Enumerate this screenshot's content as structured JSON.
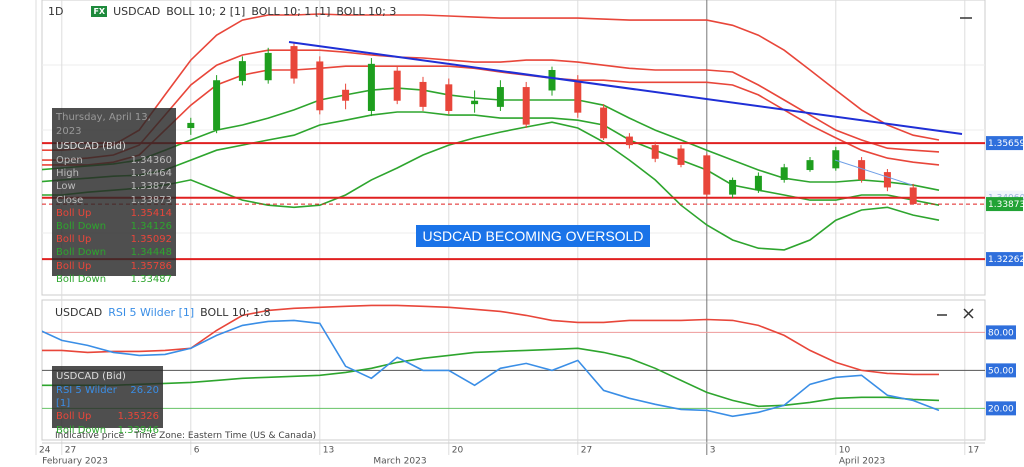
{
  "toolbar": {
    "timeframe": "1D",
    "badge": "FX"
  },
  "annotation": "USDCAD BECOMING OVERSOLD",
  "footer": {
    "price_type": "Indicative price",
    "time_zone": "Time Zone: Eastern Time (US & Canada)"
  },
  "months": [
    "February 2023",
    "March 2023",
    "April 2023"
  ],
  "info_panels": [
    {
      "date": "Thursday, April 13, 2023",
      "title": "USDCAD (Bid)",
      "rows": [
        {
          "label": "Open",
          "value": "1.34360",
          "color": "#bbbbbb"
        },
        {
          "label": "High",
          "value": "1.34464",
          "color": "#bbbbbb"
        },
        {
          "label": "Low",
          "value": "1.33872",
          "color": "#bbbbbb"
        },
        {
          "label": "Close",
          "value": "1.33873",
          "color": "#bbbbbb"
        },
        {
          "label": "Boll Up",
          "value": "1.35414",
          "color": "#e8463a"
        },
        {
          "label": "Boll Down",
          "value": "1.34126",
          "color": "#2ea52e"
        },
        {
          "label": "Boll Up",
          "value": "1.35092",
          "color": "#e8463a"
        },
        {
          "label": "Boll Down",
          "value": "1.34448",
          "color": "#2ea52e"
        },
        {
          "label": "Boll Up",
          "value": "1.35786",
          "color": "#e8463a"
        },
        {
          "label": "Boll Down",
          "value": "1.33487",
          "color": "#2ea52e"
        }
      ]
    },
    {
      "title": "USDCAD (Bid)",
      "rows": [
        {
          "label": "RSI 5 Wilder [1]",
          "value": "26.20",
          "color": "#3a8ee6"
        },
        {
          "label": "Boll Up",
          "value": "1.35326",
          "color": "#e8463a"
        },
        {
          "label": "Boll Down",
          "value": "1.33946",
          "color": "#2ea52e"
        }
      ]
    }
  ],
  "chart_data": [
    {
      "type": "candlestick",
      "symbol": "USDCAD",
      "categories": [
        "24",
        "27",
        null,
        null,
        null,
        null,
        "6",
        null,
        null,
        null,
        null,
        "13",
        null,
        null,
        null,
        null,
        "20",
        null,
        null,
        null,
        null,
        "27",
        null,
        null,
        null,
        null,
        "3",
        null,
        null,
        null,
        null,
        "10",
        null,
        null,
        null,
        null,
        "17"
      ],
      "ylim": [
        1.3121,
        1.3985
      ],
      "up_color": "#1e9e1e",
      "down_color": "#e8463a",
      "open": [
        null,
        null,
        null,
        null,
        null,
        null,
        1.361,
        1.3604,
        1.3748,
        1.375,
        1.385,
        1.3805,
        1.3722,
        1.366,
        1.3778,
        1.3745,
        1.3738,
        1.368,
        1.3672,
        1.373,
        1.372,
        1.375,
        1.367,
        1.3585,
        1.356,
        1.355,
        1.353,
        1.3415,
        1.3428,
        1.3458,
        1.3487,
        1.3492,
        1.3516,
        1.3481,
        1.3436,
        null,
        null
      ],
      "high": [
        null,
        null,
        null,
        null,
        null,
        null,
        1.364,
        1.3765,
        1.382,
        1.3845,
        1.3862,
        1.382,
        1.374,
        1.3815,
        1.379,
        1.376,
        1.3755,
        1.372,
        1.375,
        1.3745,
        1.379,
        1.3765,
        1.368,
        1.3595,
        1.357,
        1.356,
        1.3535,
        1.3465,
        1.348,
        1.3505,
        1.3525,
        1.3555,
        1.3525,
        1.349,
        1.34464,
        null,
        null
      ],
      "low": [
        null,
        null,
        null,
        null,
        null,
        null,
        1.359,
        1.3595,
        1.3735,
        1.374,
        1.374,
        1.365,
        1.3665,
        1.3645,
        1.368,
        1.366,
        1.365,
        1.3655,
        1.366,
        1.361,
        1.3705,
        1.364,
        1.3575,
        1.355,
        1.351,
        1.3495,
        1.341,
        1.3405,
        1.342,
        1.345,
        1.3482,
        1.3485,
        1.345,
        1.3425,
        1.33872,
        null,
        null
      ],
      "close": [
        null,
        null,
        null,
        null,
        null,
        null,
        1.3625,
        1.375,
        1.3806,
        1.383,
        1.3755,
        1.3662,
        1.369,
        1.3798,
        1.369,
        1.3672,
        1.366,
        1.369,
        1.373,
        1.362,
        1.378,
        1.3655,
        1.358,
        1.356,
        1.352,
        1.3502,
        1.3415,
        1.3458,
        1.347,
        1.3495,
        1.3516,
        1.3545,
        1.3458,
        1.3436,
        1.33873,
        null,
        null
      ],
      "indicators": [
        {
          "name": "BOLL 10; 2 [1]",
          "upper_color": "#e8463a",
          "lower_color": "#2ea52e",
          "upper": [
            1.3516,
            1.3516,
            1.3522,
            1.3531,
            1.356,
            1.3648,
            1.3736,
            1.3794,
            1.3824,
            1.3838,
            1.3838,
            1.3838,
            1.3832,
            1.3824,
            1.3818,
            1.3815,
            1.3809,
            1.3803,
            1.3803,
            1.3809,
            1.3809,
            1.3803,
            1.3794,
            1.3785,
            1.378,
            1.378,
            1.378,
            1.3774,
            1.3736,
            1.3692,
            1.3648,
            1.3604,
            1.3575,
            1.3551,
            1.3545,
            1.354,
            null
          ],
          "lower": [
            1.3452,
            1.3458,
            1.3463,
            1.3469,
            1.3472,
            1.3487,
            1.3516,
            1.3545,
            1.356,
            1.3575,
            1.3589,
            1.3619,
            1.3633,
            1.3648,
            1.3657,
            1.3657,
            1.3648,
            1.3648,
            1.3639,
            1.3639,
            1.3639,
            1.3633,
            1.3619,
            1.3575,
            1.3545,
            1.3516,
            1.3487,
            1.3443,
            1.3428,
            1.3414,
            1.3399,
            1.3399,
            1.3414,
            1.3414,
            1.3399,
            1.3384,
            null
          ]
        },
        {
          "name": "BOLL 10; 1 [1]",
          "upper_color": "#e8463a",
          "lower_color": "#2ea52e",
          "upper": [
            1.3502,
            1.3502,
            1.3502,
            1.351,
            1.3531,
            1.3604,
            1.3677,
            1.3736,
            1.3765,
            1.378,
            1.378,
            1.3785,
            1.3791,
            1.3791,
            1.3791,
            1.3791,
            1.3791,
            1.3785,
            1.3774,
            1.3765,
            1.3756,
            1.375,
            1.375,
            1.3744,
            1.3744,
            1.3744,
            1.3744,
            1.3736,
            1.3707,
            1.3663,
            1.3619,
            1.3581,
            1.3545,
            1.3522,
            1.351,
            1.3502,
            null
          ],
          "lower": [
            1.3487,
            1.3493,
            1.3499,
            1.3505,
            1.3516,
            1.3545,
            1.3575,
            1.3604,
            1.3619,
            1.3639,
            1.3663,
            1.3692,
            1.3707,
            1.3721,
            1.3727,
            1.3721,
            1.3707,
            1.3698,
            1.3692,
            1.3692,
            1.3692,
            1.3692,
            1.3677,
            1.3639,
            1.3604,
            1.3575,
            1.3545,
            1.3516,
            1.3487,
            1.3463,
            1.3452,
            1.3452,
            1.3458,
            1.3452,
            1.3443,
            1.3428,
            null
          ]
        },
        {
          "name": "BOLL 10; 3",
          "upper_color": "#e8463a",
          "lower_color": "#2ea52e",
          "upper": [
            1.3545,
            1.3545,
            1.3551,
            1.356,
            1.3604,
            1.3707,
            1.3809,
            1.3882,
            1.3926,
            1.3941,
            1.3941,
            1.3944,
            1.3941,
            1.3941,
            1.3941,
            1.3941,
            1.3938,
            1.3935,
            1.3932,
            1.3932,
            1.3932,
            1.3932,
            1.3929,
            1.3926,
            1.3926,
            1.3926,
            1.3926,
            1.3911,
            1.3882,
            1.3838,
            1.378,
            1.3721,
            1.3663,
            1.3619,
            1.3589,
            1.3575,
            null
          ],
          "lower": [
            1.3414,
            1.3414,
            1.3422,
            1.3428,
            1.3434,
            1.3443,
            1.3458,
            1.3428,
            1.3399,
            1.3384,
            1.3378,
            1.3384,
            1.3414,
            1.3458,
            1.3493,
            1.3531,
            1.356,
            1.3581,
            1.3598,
            1.3613,
            1.3627,
            1.361,
            1.3569,
            1.3516,
            1.3458,
            1.3384,
            1.3326,
            1.3282,
            1.3258,
            1.3253,
            1.3282,
            1.334,
            1.337,
            1.3378,
            1.3355,
            1.334,
            null
          ]
        }
      ],
      "price_tags": [
        {
          "tag": 1.35659,
          "background": "#2f6fdc",
          "text_color": "#ffffff",
          "line": "solid"
        },
        {
          "tag": {
            "value": 1.3406,
            "label": "1.34060"
          },
          "background": "#f2f6fd",
          "text_color": "#9bb3dd",
          "line": "solid"
        },
        {
          "tag": 1.33873,
          "background": "#22a336",
          "text_color": "#ffffff",
          "line": "dashed"
        },
        {
          "tag": 1.32262,
          "background": "#2f6fdc",
          "text_color": "#ffffff",
          "line": "solid"
        }
      ]
    },
    {
      "type": "line",
      "symbol": "USDCAD",
      "ylim": [
        -5,
        104
      ],
      "yticks": [
        {
          "value": 20,
          "label": "20.00"
        },
        {
          "value": 50,
          "label": "50.00"
        },
        {
          "value": 80,
          "label": "80.00"
        }
      ],
      "grid_colors": [
        "#66c266",
        "#555555",
        "#ee9a9a"
      ],
      "series": [
        {
          "name": "RSI 5 Wilder [1]",
          "color": "#3a8ee6",
          "values": [
            83.1,
            73.7,
            69.7,
            64.2,
            61.8,
            62.6,
            67.4,
            77.6,
            85.5,
            88.7,
            89.5,
            87.1,
            53.2,
            43.7,
            60.3,
            50.0,
            50.0,
            38.2,
            51.6,
            55.5,
            50.0,
            57.9,
            34.2,
            27.9,
            23.2,
            19.2,
            18.4,
            13.7,
            16.9,
            22.4,
            39.0,
            44.5,
            46.1,
            30.3,
            26.2,
            18.4,
            null
          ]
        }
      ],
      "bollinger": {
        "name": "BOLL 10; 1.8",
        "upper_color": "#e8463a",
        "lower_color": "#2ea52e",
        "upper": [
          65.8,
          65.8,
          64.2,
          65.0,
          65.0,
          65.8,
          67.4,
          81.6,
          93.4,
          97.4,
          99.0,
          99.8,
          100.6,
          101.3,
          101.3,
          100.6,
          99.8,
          98.2,
          96.6,
          93.4,
          89.5,
          87.9,
          87.9,
          89.5,
          89.5,
          89.5,
          90.2,
          89.5,
          85.5,
          77.6,
          65.8,
          56.3,
          50.0,
          47.6,
          46.8,
          46.8,
          null
        ],
        "lower": [
          38.2,
          38.2,
          38.2,
          38.2,
          39.0,
          39.7,
          40.5,
          42.1,
          43.7,
          44.5,
          45.3,
          46.1,
          48.4,
          51.6,
          56.3,
          59.5,
          61.8,
          64.2,
          65.0,
          65.8,
          66.6,
          67.4,
          64.2,
          59.5,
          51.6,
          42.1,
          32.6,
          26.3,
          21.6,
          22.4,
          24.7,
          27.9,
          28.7,
          28.7,
          27.1,
          26.3,
          null
        ]
      }
    }
  ]
}
